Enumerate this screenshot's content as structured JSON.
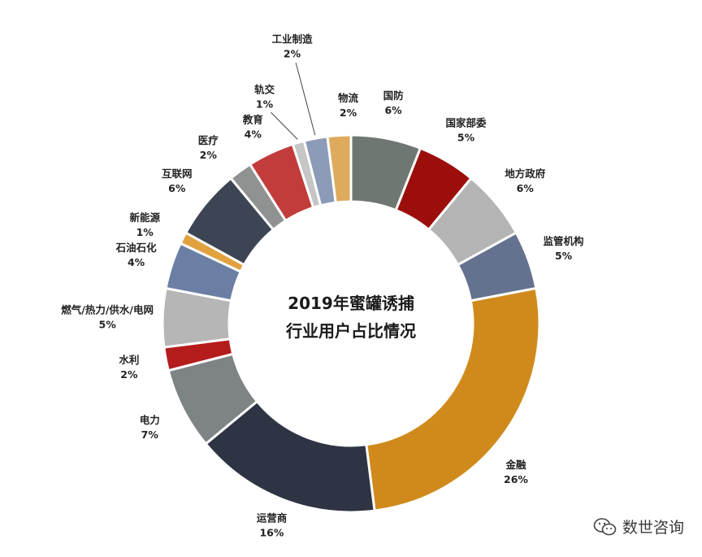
{
  "chart_data": {
    "type": "pie",
    "donut": true,
    "title_lines": [
      "2019年蜜罐诱捕",
      "行业用户占比情况"
    ],
    "slices": [
      {
        "label": "国防",
        "pct_label": "6%",
        "value": 6,
        "color": "#6f7773"
      },
      {
        "label": "国家部委",
        "pct_label": "5%",
        "value": 5,
        "color": "#9b0e0c"
      },
      {
        "label": "地方政府",
        "pct_label": "6%",
        "value": 6,
        "color": "#b4b4b4"
      },
      {
        "label": "监管机构",
        "pct_label": "5%",
        "value": 5,
        "color": "#64728f"
      },
      {
        "label": "金融",
        "pct_label": "26%",
        "value": 26,
        "color": "#d08a1c"
      },
      {
        "label": "运营商",
        "pct_label": "16%",
        "value": 16,
        "color": "#2e3444"
      },
      {
        "label": "电力",
        "pct_label": "7%",
        "value": 7,
        "color": "#7e8483"
      },
      {
        "label": "水利",
        "pct_label": "2%",
        "value": 2,
        "color": "#b51c1c"
      },
      {
        "label": "燃气/热力/供水/电网",
        "pct_label": "5%",
        "value": 5,
        "color": "#b6b6b6"
      },
      {
        "label": "石油石化",
        "pct_label": "4%",
        "value": 4,
        "color": "#6b7fa4"
      },
      {
        "label": "新能源",
        "pct_label": "1%",
        "value": 1,
        "color": "#e2a13f"
      },
      {
        "label": "互联网",
        "pct_label": "6%",
        "value": 6,
        "color": "#3d4453"
      },
      {
        "label": "医疗",
        "pct_label": "2%",
        "value": 2,
        "color": "#8e9391"
      },
      {
        "label": "教育",
        "pct_label": "4%",
        "value": 4,
        "color": "#c23c3c"
      },
      {
        "label": "轨交",
        "pct_label": "1%",
        "value": 1,
        "color": "#c6c6c6"
      },
      {
        "label": "工业制造",
        "pct_label": "2%",
        "value": 2,
        "color": "#8c9bb7"
      },
      {
        "label": "物流",
        "pct_label": "2%",
        "value": 2,
        "color": "#deab5e"
      }
    ]
  },
  "watermark": {
    "text": "数世咨询",
    "icon": "wechat-icon"
  }
}
